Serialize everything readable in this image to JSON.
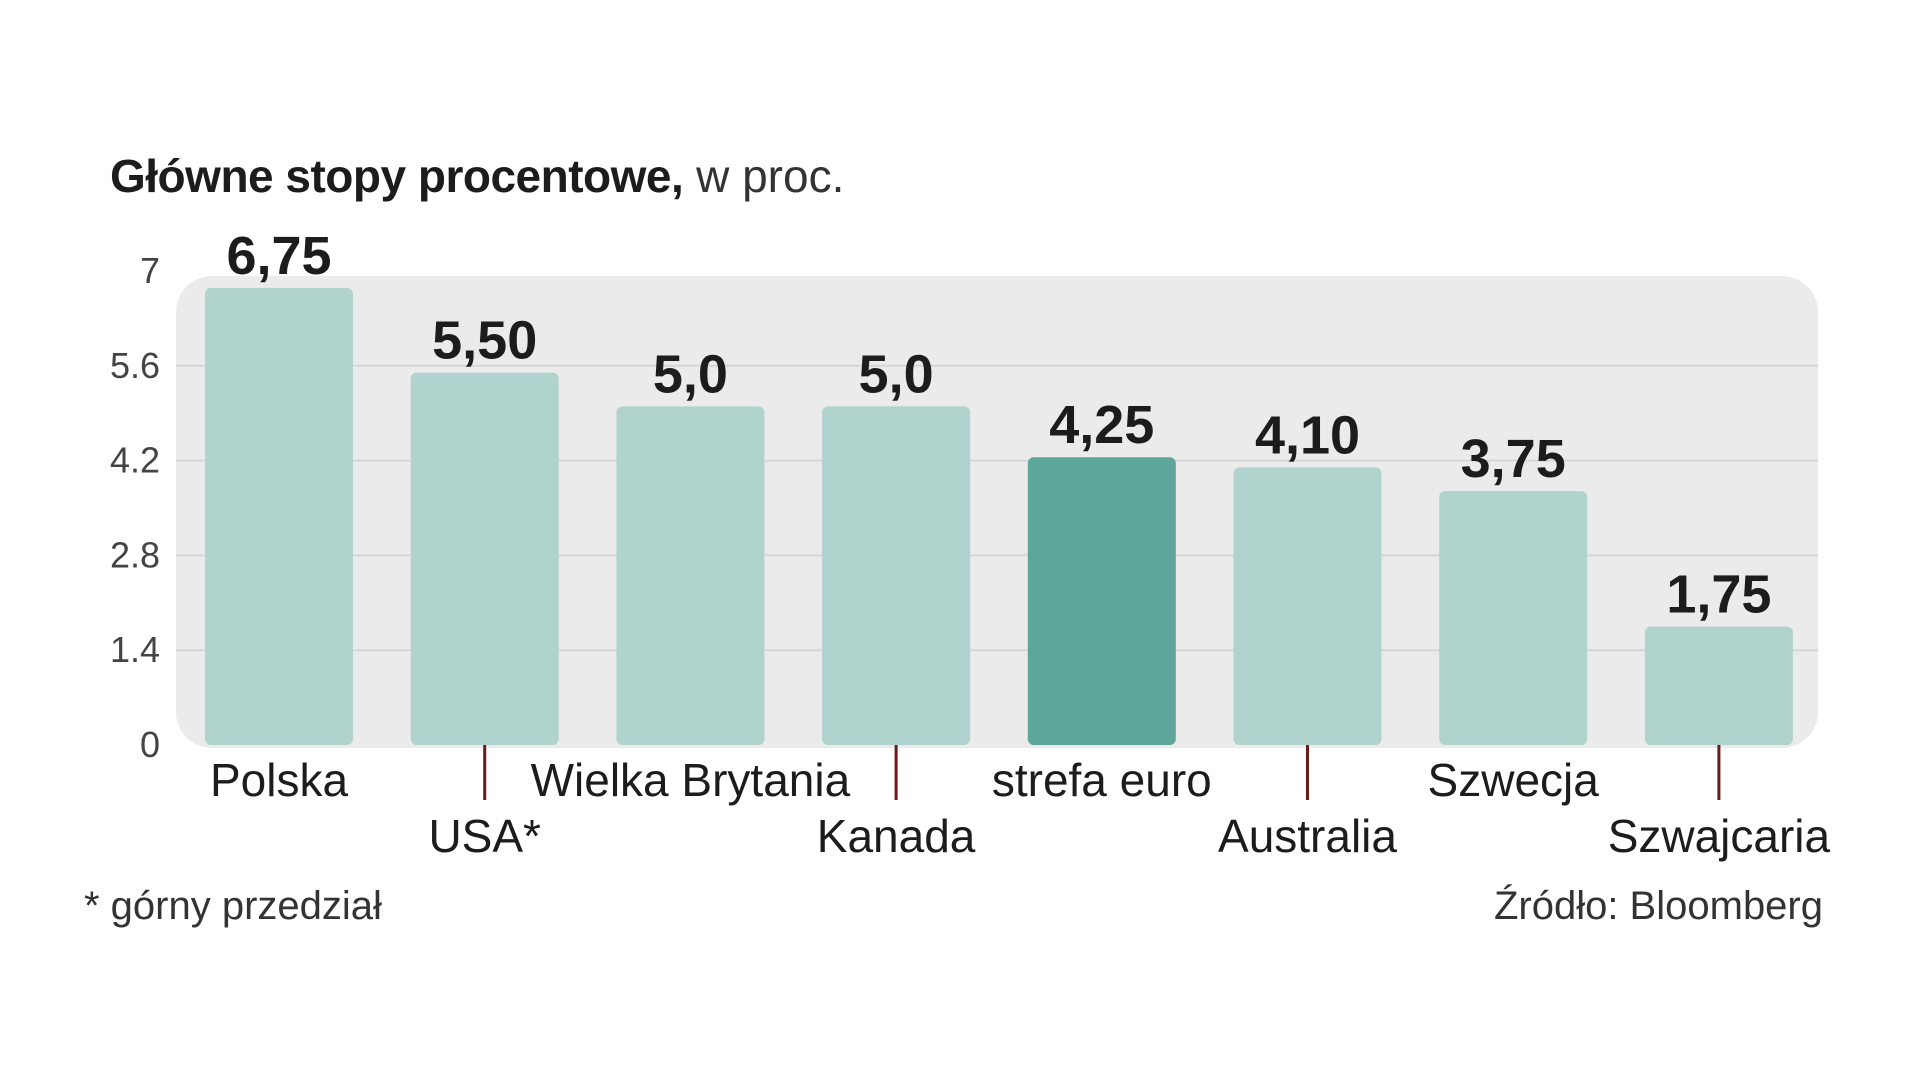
{
  "title": {
    "main": "Główne stopy procentowe,",
    "unit": "w proc."
  },
  "footnote": "* górny przedział",
  "source": "Źródło: Bloomberg",
  "chart_data": {
    "type": "bar",
    "categories": [
      "Polska",
      "USA*",
      "Wielka Brytania",
      "Kanada",
      "strefa euro",
      "Australia",
      "Szwecja",
      "Szwajcaria"
    ],
    "values": [
      6.75,
      5.5,
      5.0,
      5.0,
      4.25,
      4.1,
      3.75,
      1.75
    ],
    "value_labels": [
      "6,75",
      "5,50",
      "5,0",
      "5,0",
      "4,25",
      "4,10",
      "3,75",
      "1,75"
    ],
    "highlight_index": 4,
    "yticks": [
      "0",
      "1.4",
      "2.8",
      "4.2",
      "5.6",
      "7"
    ],
    "ylim": [
      0,
      7
    ],
    "grid": true,
    "colors": {
      "bar": "#b1d3cd",
      "bar_highlight": "#5da699",
      "panel": "#ebebeb",
      "grid": "#d6d6d6",
      "connector": "#6b1a1a"
    }
  }
}
